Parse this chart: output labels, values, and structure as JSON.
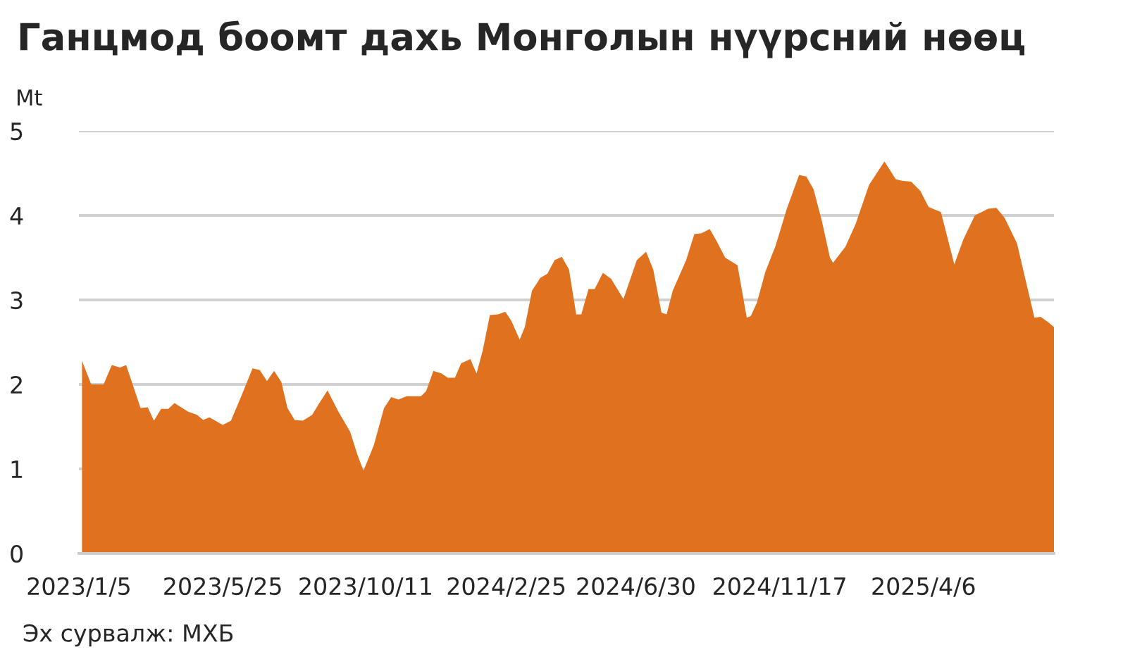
{
  "chart_data": {
    "type": "area",
    "title": "Ганцмод боомт дахь Монголын нүүрсний нөөц",
    "ylabel": "Mt",
    "annotations": [
      "Эх сурвалж: МХБ"
    ],
    "x": [
      "2023-01-08",
      "2023-01-17",
      "2023-01-29",
      "2023-02-06",
      "2023-02-14",
      "2023-02-20",
      "2023-03-06",
      "2023-03-13",
      "2023-03-19",
      "2023-03-26",
      "2023-04-02",
      "2023-04-08",
      "2023-04-21",
      "2023-04-30",
      "2023-05-06",
      "2023-05-12",
      "2023-05-25",
      "2023-06-02",
      "2023-06-13",
      "2023-06-23",
      "2023-06-30",
      "2023-07-07",
      "2023-07-14",
      "2023-07-21",
      "2023-07-27",
      "2023-08-03",
      "2023-08-11",
      "2023-08-20",
      "2023-08-27",
      "2023-09-04",
      "2023-09-14",
      "2023-09-26",
      "2023-10-03",
      "2023-10-09",
      "2023-10-19",
      "2023-10-29",
      "2023-11-05",
      "2023-11-12",
      "2023-11-20",
      "2023-12-04",
      "2023-12-09",
      "2023-12-16",
      "2023-12-24",
      "2023-12-30",
      "2024-01-06",
      "2024-01-12",
      "2024-01-21",
      "2024-01-27",
      "2024-02-02",
      "2024-02-09",
      "2024-02-17",
      "2024-02-24",
      "2024-03-01",
      "2024-03-09",
      "2024-03-14",
      "2024-03-21",
      "2024-03-29",
      "2024-04-05",
      "2024-04-12",
      "2024-04-19",
      "2024-04-26",
      "2024-05-03",
      "2024-05-08",
      "2024-05-15",
      "2024-05-21",
      "2024-05-29",
      "2024-06-06",
      "2024-06-18",
      "2024-07-01",
      "2024-07-10",
      "2024-07-17",
      "2024-07-25",
      "2024-07-30",
      "2024-08-05",
      "2024-08-18",
      "2024-08-26",
      "2024-09-02",
      "2024-09-10",
      "2024-09-17",
      "2024-09-25",
      "2024-10-07",
      "2024-10-16",
      "2024-10-20",
      "2024-10-26",
      "2024-11-03",
      "2024-11-13",
      "2024-11-24",
      "2024-12-06",
      "2024-12-13",
      "2024-12-20",
      "2024-12-28",
      "2025-01-05",
      "2025-01-08",
      "2025-01-20",
      "2025-01-30",
      "2025-02-12",
      "2025-02-27",
      "2025-03-10",
      "2025-03-16",
      "2025-03-25",
      "2025-04-03",
      "2025-04-11",
      "2025-04-23",
      "2025-05-06",
      "2025-05-15",
      "2025-05-26",
      "2025-06-08",
      "2025-06-16",
      "2025-06-24",
      "2025-07-06",
      "2025-07-23",
      "2025-07-29",
      "2025-08-05",
      "2025-08-11"
    ],
    "series": [
      {
        "color": "#e0711f",
        "values": [
          2.28,
          2.0,
          2.0,
          2.23,
          2.2,
          2.23,
          1.72,
          1.73,
          1.57,
          1.71,
          1.71,
          1.78,
          1.68,
          1.64,
          1.58,
          1.61,
          1.52,
          1.57,
          1.89,
          2.19,
          2.17,
          2.04,
          2.16,
          2.03,
          1.72,
          1.58,
          1.57,
          1.64,
          1.78,
          1.93,
          1.69,
          1.44,
          1.17,
          0.98,
          1.28,
          1.72,
          1.85,
          1.82,
          1.86,
          1.86,
          1.92,
          2.16,
          2.13,
          2.08,
          2.08,
          2.25,
          2.3,
          2.13,
          2.4,
          2.82,
          2.83,
          2.86,
          2.75,
          2.53,
          2.68,
          3.11,
          3.26,
          3.31,
          3.47,
          3.51,
          3.36,
          2.83,
          2.83,
          3.13,
          3.13,
          3.32,
          3.25,
          3.01,
          3.47,
          3.57,
          3.36,
          2.85,
          2.83,
          3.11,
          3.47,
          3.78,
          3.79,
          3.84,
          3.69,
          3.5,
          3.41,
          2.79,
          2.81,
          2.97,
          3.33,
          3.64,
          4.08,
          4.48,
          4.46,
          4.31,
          3.94,
          3.5,
          3.44,
          3.63,
          3.9,
          4.36,
          4.64,
          4.43,
          4.41,
          4.4,
          4.29,
          4.1,
          4.04,
          3.42,
          3.72,
          4.0,
          4.08,
          4.09,
          3.97,
          3.67,
          2.79,
          2.8,
          2.74,
          2.68
        ]
      }
    ],
    "xlim": [
      "2023-01-05",
      "2025-08-11"
    ],
    "xticks": [
      {
        "value": "2023-01-05",
        "label": "2023/1/5"
      },
      {
        "value": "2023-05-25",
        "label": "2023/5/25"
      },
      {
        "value": "2023-10-11",
        "label": "2023/10/11"
      },
      {
        "value": "2024-02-25",
        "label": "2024/2/25"
      },
      {
        "value": "2024-06-30",
        "label": "2024/6/30"
      },
      {
        "value": "2024-11-17",
        "label": "2024/11/17"
      },
      {
        "value": "2025-04-06",
        "label": "2025/4/6"
      }
    ],
    "ylim": [
      0,
      5
    ],
    "yticks": [
      0,
      1,
      2,
      3,
      4,
      5
    ],
    "grid": "y"
  }
}
